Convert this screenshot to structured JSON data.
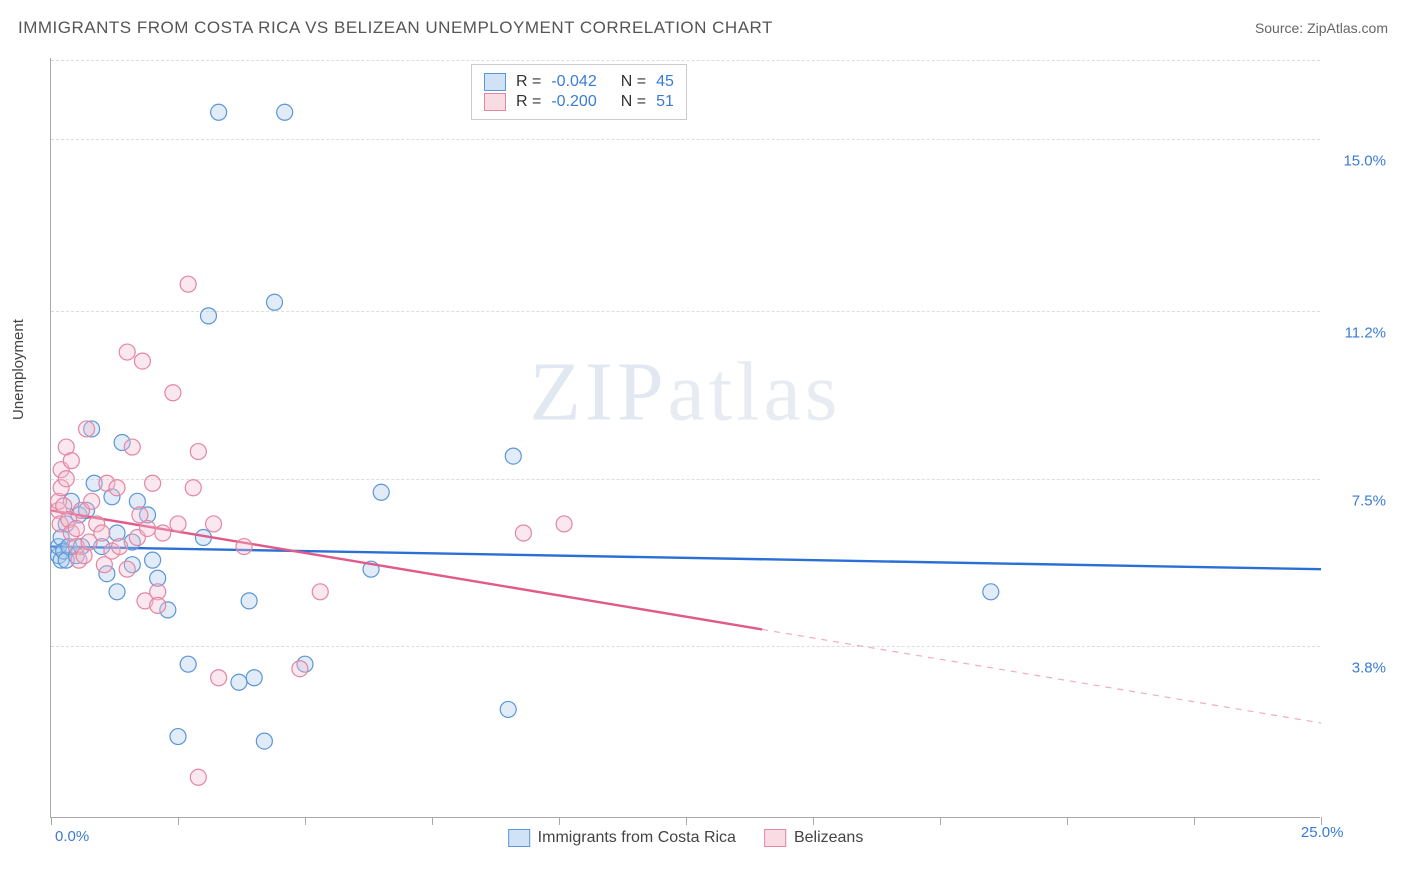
{
  "header": {
    "title": "IMMIGRANTS FROM COSTA RICA VS BELIZEAN UNEMPLOYMENT CORRELATION CHART",
    "source_label": "Source: ",
    "source_name": "ZipAtlas.com"
  },
  "watermark": {
    "bold": "ZIP",
    "light": "atlas"
  },
  "chart": {
    "type": "scatter",
    "y_axis_label": "Unemployment",
    "xlim": [
      0,
      25
    ],
    "ylim": [
      0,
      16.8
    ],
    "background": "#ffffff",
    "grid_color": "#dddddd",
    "axis_color": "#aaaaaa",
    "tick_label_color": "#3a7bd5",
    "y_gridlines": [
      {
        "value": 3.8,
        "label": "3.8%"
      },
      {
        "value": 7.5,
        "label": "7.5%"
      },
      {
        "value": 11.2,
        "label": "11.2%"
      },
      {
        "value": 15.0,
        "label": "15.0%"
      }
    ],
    "x_ticks": [
      0,
      2.5,
      5,
      7.5,
      10,
      12.5,
      15,
      17.5,
      20,
      22.5,
      25
    ],
    "x_tick_labels": {
      "start": "0.0%",
      "end": "25.0%"
    },
    "marker_radius": 8,
    "marker_stroke_width": 1.2,
    "marker_fill_opacity": 0.35,
    "line_width": 2.4,
    "series": [
      {
        "key": "costa_rica",
        "label": "Immigrants from Costa Rica",
        "color_stroke": "#5a96d8",
        "color_fill": "#a9c9ec",
        "line_color": "#2a6fd6",
        "R": "-0.042",
        "N": "45",
        "trend": {
          "x1": 0,
          "y1": 6.0,
          "x2": 25,
          "y2": 5.5,
          "dash_after_x": null
        },
        "points": [
          [
            0.15,
            5.8
          ],
          [
            0.15,
            6.0
          ],
          [
            0.2,
            5.7
          ],
          [
            0.2,
            6.2
          ],
          [
            0.25,
            5.9
          ],
          [
            0.3,
            6.5
          ],
          [
            0.3,
            5.7
          ],
          [
            0.35,
            6.0
          ],
          [
            0.4,
            7.0
          ],
          [
            0.5,
            5.8
          ],
          [
            0.55,
            6.7
          ],
          [
            0.6,
            6.0
          ],
          [
            0.7,
            6.8
          ],
          [
            0.8,
            8.6
          ],
          [
            0.85,
            7.4
          ],
          [
            1.0,
            6.0
          ],
          [
            1.1,
            5.4
          ],
          [
            1.2,
            7.1
          ],
          [
            1.3,
            6.3
          ],
          [
            1.3,
            5.0
          ],
          [
            1.4,
            8.3
          ],
          [
            1.6,
            6.1
          ],
          [
            1.6,
            5.6
          ],
          [
            1.7,
            7.0
          ],
          [
            1.9,
            6.7
          ],
          [
            2.0,
            5.7
          ],
          [
            2.1,
            5.3
          ],
          [
            2.3,
            4.6
          ],
          [
            2.5,
            1.8
          ],
          [
            2.7,
            3.4
          ],
          [
            3.0,
            6.2
          ],
          [
            3.1,
            11.1
          ],
          [
            3.3,
            15.6
          ],
          [
            3.7,
            3.0
          ],
          [
            3.9,
            4.8
          ],
          [
            4.0,
            3.1
          ],
          [
            4.2,
            1.7
          ],
          [
            4.4,
            11.4
          ],
          [
            4.6,
            15.6
          ],
          [
            5.0,
            3.4
          ],
          [
            6.3,
            5.5
          ],
          [
            6.5,
            7.2
          ],
          [
            9.0,
            2.4
          ],
          [
            9.1,
            8.0
          ],
          [
            18.5,
            5.0
          ]
        ]
      },
      {
        "key": "belizeans",
        "label": "Belizeans",
        "color_stroke": "#e386a3",
        "color_fill": "#f3bccd",
        "line_color": "#e05a8a",
        "R": "-0.200",
        "N": "51",
        "trend": {
          "x1": 0,
          "y1": 6.8,
          "x2": 25,
          "y2": 2.1,
          "dash_after_x": 14
        },
        "points": [
          [
            0.15,
            6.8
          ],
          [
            0.15,
            7.0
          ],
          [
            0.18,
            6.5
          ],
          [
            0.2,
            7.3
          ],
          [
            0.2,
            7.7
          ],
          [
            0.25,
            6.9
          ],
          [
            0.3,
            7.5
          ],
          [
            0.3,
            8.2
          ],
          [
            0.35,
            6.6
          ],
          [
            0.4,
            6.3
          ],
          [
            0.4,
            7.9
          ],
          [
            0.5,
            6.0
          ],
          [
            0.5,
            6.4
          ],
          [
            0.55,
            5.7
          ],
          [
            0.6,
            6.8
          ],
          [
            0.65,
            5.8
          ],
          [
            0.7,
            8.6
          ],
          [
            0.75,
            6.1
          ],
          [
            0.8,
            7.0
          ],
          [
            0.9,
            6.5
          ],
          [
            1.0,
            6.3
          ],
          [
            1.05,
            5.6
          ],
          [
            1.1,
            7.4
          ],
          [
            1.2,
            5.9
          ],
          [
            1.3,
            7.3
          ],
          [
            1.35,
            6.0
          ],
          [
            1.5,
            5.5
          ],
          [
            1.6,
            8.2
          ],
          [
            1.7,
            6.2
          ],
          [
            1.75,
            6.7
          ],
          [
            1.8,
            10.1
          ],
          [
            1.85,
            4.8
          ],
          [
            1.9,
            6.4
          ],
          [
            2.0,
            7.4
          ],
          [
            2.1,
            5.0
          ],
          [
            2.1,
            4.7
          ],
          [
            2.2,
            6.3
          ],
          [
            2.4,
            9.4
          ],
          [
            2.5,
            6.5
          ],
          [
            2.7,
            11.8
          ],
          [
            2.8,
            7.3
          ],
          [
            2.9,
            8.1
          ],
          [
            2.9,
            0.9
          ],
          [
            3.2,
            6.5
          ],
          [
            3.3,
            3.1
          ],
          [
            3.8,
            6.0
          ],
          [
            4.9,
            3.3
          ],
          [
            5.3,
            5.0
          ],
          [
            9.3,
            6.3
          ],
          [
            10.1,
            6.5
          ],
          [
            1.5,
            10.3
          ]
        ]
      }
    ],
    "legend_top": {
      "R_label": "R =",
      "N_label": "N ="
    }
  }
}
